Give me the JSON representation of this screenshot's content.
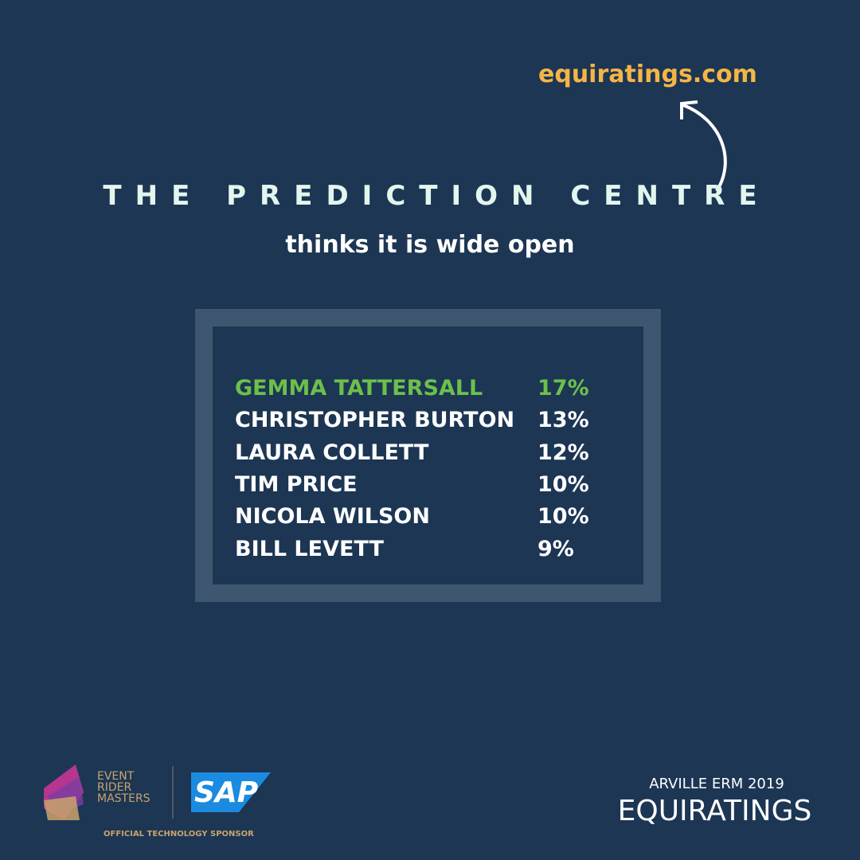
{
  "header": {
    "link": "equiratings.com",
    "title": "THE PREDICTION CENTRE",
    "subtitle": "thinks it is wide open"
  },
  "table": {
    "rows": [
      [
        "GEMMA TATTERSALL",
        "17%"
      ],
      [
        "CHRISTOPHER BURTON",
        "13%"
      ],
      [
        "LAURA COLLETT",
        "12%"
      ],
      [
        "TIM PRICE",
        "10%"
      ],
      [
        "NICOLA WILSON",
        "10%"
      ],
      [
        "BILL LEVETT",
        "9%"
      ]
    ]
  },
  "footer": {
    "logo_lines": [
      "EVENT",
      "RIDER",
      "MASTERS"
    ],
    "sponsor": "SAP",
    "sponsor_note": "OFFICIAL TECHNOLOGY SPONSOR",
    "event": "ARVILLE ERM 2019",
    "brand": "EQUIRATINGS"
  }
}
